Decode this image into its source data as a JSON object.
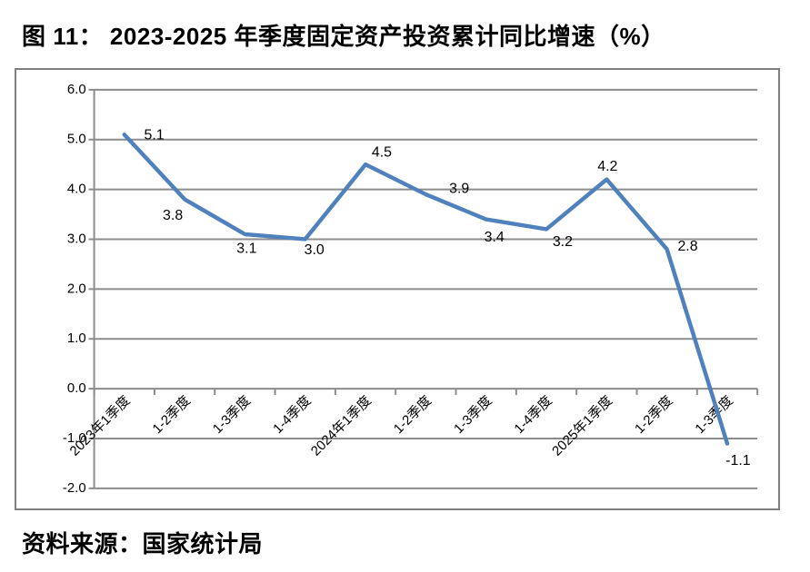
{
  "title": "图 11： 2023-2025 年季度固定资产投资累计同比增速（%）",
  "source": "资料来源：国家统计局",
  "chart_data": {
    "type": "line",
    "title": "图 11： 2023-2025 年季度固定资产投资累计同比增速（%）",
    "categories": [
      "2023年1季度",
      "1-2季度",
      "1-3季度",
      "1-4季度",
      "2024年1季度",
      "1-2季度",
      "1-3季度",
      "1-4季度",
      "2025年1季度",
      "1-2季度",
      "1-3季度"
    ],
    "values": [
      5.1,
      3.8,
      3.1,
      3.0,
      4.5,
      3.9,
      3.4,
      3.2,
      4.2,
      2.8,
      -1.1
    ],
    "value_labels": [
      "5.1",
      "3.8",
      "3.1",
      "3.0",
      "4.5",
      "3.9",
      "3.4",
      "3.2",
      "4.2",
      "2.8",
      "-1.1"
    ],
    "xlabel": "",
    "ylabel": "",
    "ylim": [
      -2.0,
      6.0
    ],
    "ytick_step": 1.0,
    "ytick_labels": [
      "6.0",
      "5.0",
      "4.0",
      "3.0",
      "2.0",
      "1.0",
      "0.0",
      "-1.0",
      "-2.0"
    ],
    "grid": true,
    "legend_position": "none",
    "line_color": "#4F81BD",
    "grid_color": "#8C8C8C",
    "axis_color": "#8C8C8C",
    "border_color": "#7F7F7F",
    "text_color": "#000000"
  }
}
